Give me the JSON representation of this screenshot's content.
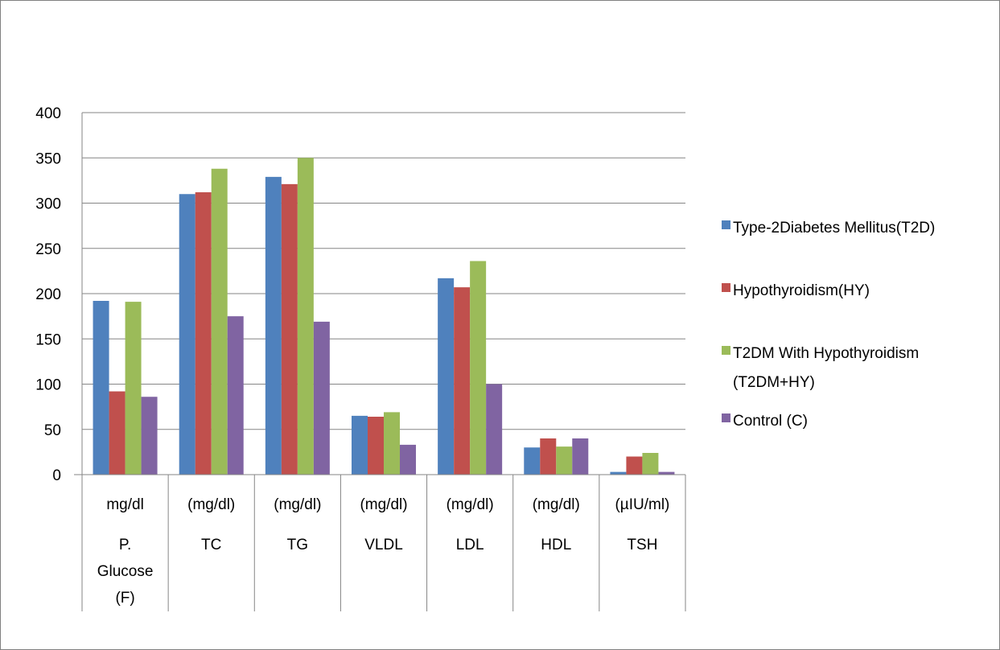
{
  "chart_data": {
    "type": "bar",
    "title": "",
    "xlabel": "",
    "ylabel": "",
    "ylim": [
      0,
      400
    ],
    "yticks": [
      0,
      50,
      100,
      150,
      200,
      250,
      300,
      350,
      400
    ],
    "grid": true,
    "legend_position": "right",
    "categories": [
      {
        "unit": "mg/dl",
        "name_lines": [
          "P.",
          "Glucose",
          "(F)"
        ]
      },
      {
        "unit": "(mg/dl)",
        "name_lines": [
          "TC"
        ]
      },
      {
        "unit": "(mg/dl)",
        "name_lines": [
          "TG"
        ]
      },
      {
        "unit": "(mg/dl)",
        "name_lines": [
          "VLDL"
        ]
      },
      {
        "unit": "(mg/dl)",
        "name_lines": [
          "LDL"
        ]
      },
      {
        "unit": "(mg/dl)",
        "name_lines": [
          "HDL"
        ]
      },
      {
        "unit": "(µIU/ml)",
        "name_lines": [
          "TSH"
        ]
      }
    ],
    "series": [
      {
        "name": "Type-2Diabetes Mellitus(T2D)",
        "legend_lines": [
          "Type-2Diabetes Mellitus(T2D)"
        ],
        "color": "#4F81BD",
        "values": [
          192,
          310,
          329,
          65,
          217,
          30,
          3
        ]
      },
      {
        "name": "Hypothyroidism(HY)",
        "legend_lines": [
          "Hypothyroidism(HY)"
        ],
        "color": "#C0504D",
        "values": [
          92,
          312,
          321,
          64,
          207,
          40,
          20
        ]
      },
      {
        "name": "T2DM With Hypothyroidism (T2DM+HY)",
        "legend_lines": [
          "T2DM With Hypothyroidism",
          "(T2DM+HY)"
        ],
        "color": "#9BBB59",
        "values": [
          191,
          338,
          350,
          69,
          236,
          31,
          24
        ]
      },
      {
        "name": "Control (C)",
        "legend_lines": [
          "Control (C)"
        ],
        "color": "#8064A2",
        "values": [
          86,
          175,
          169,
          33,
          100,
          40,
          3
        ]
      }
    ]
  }
}
